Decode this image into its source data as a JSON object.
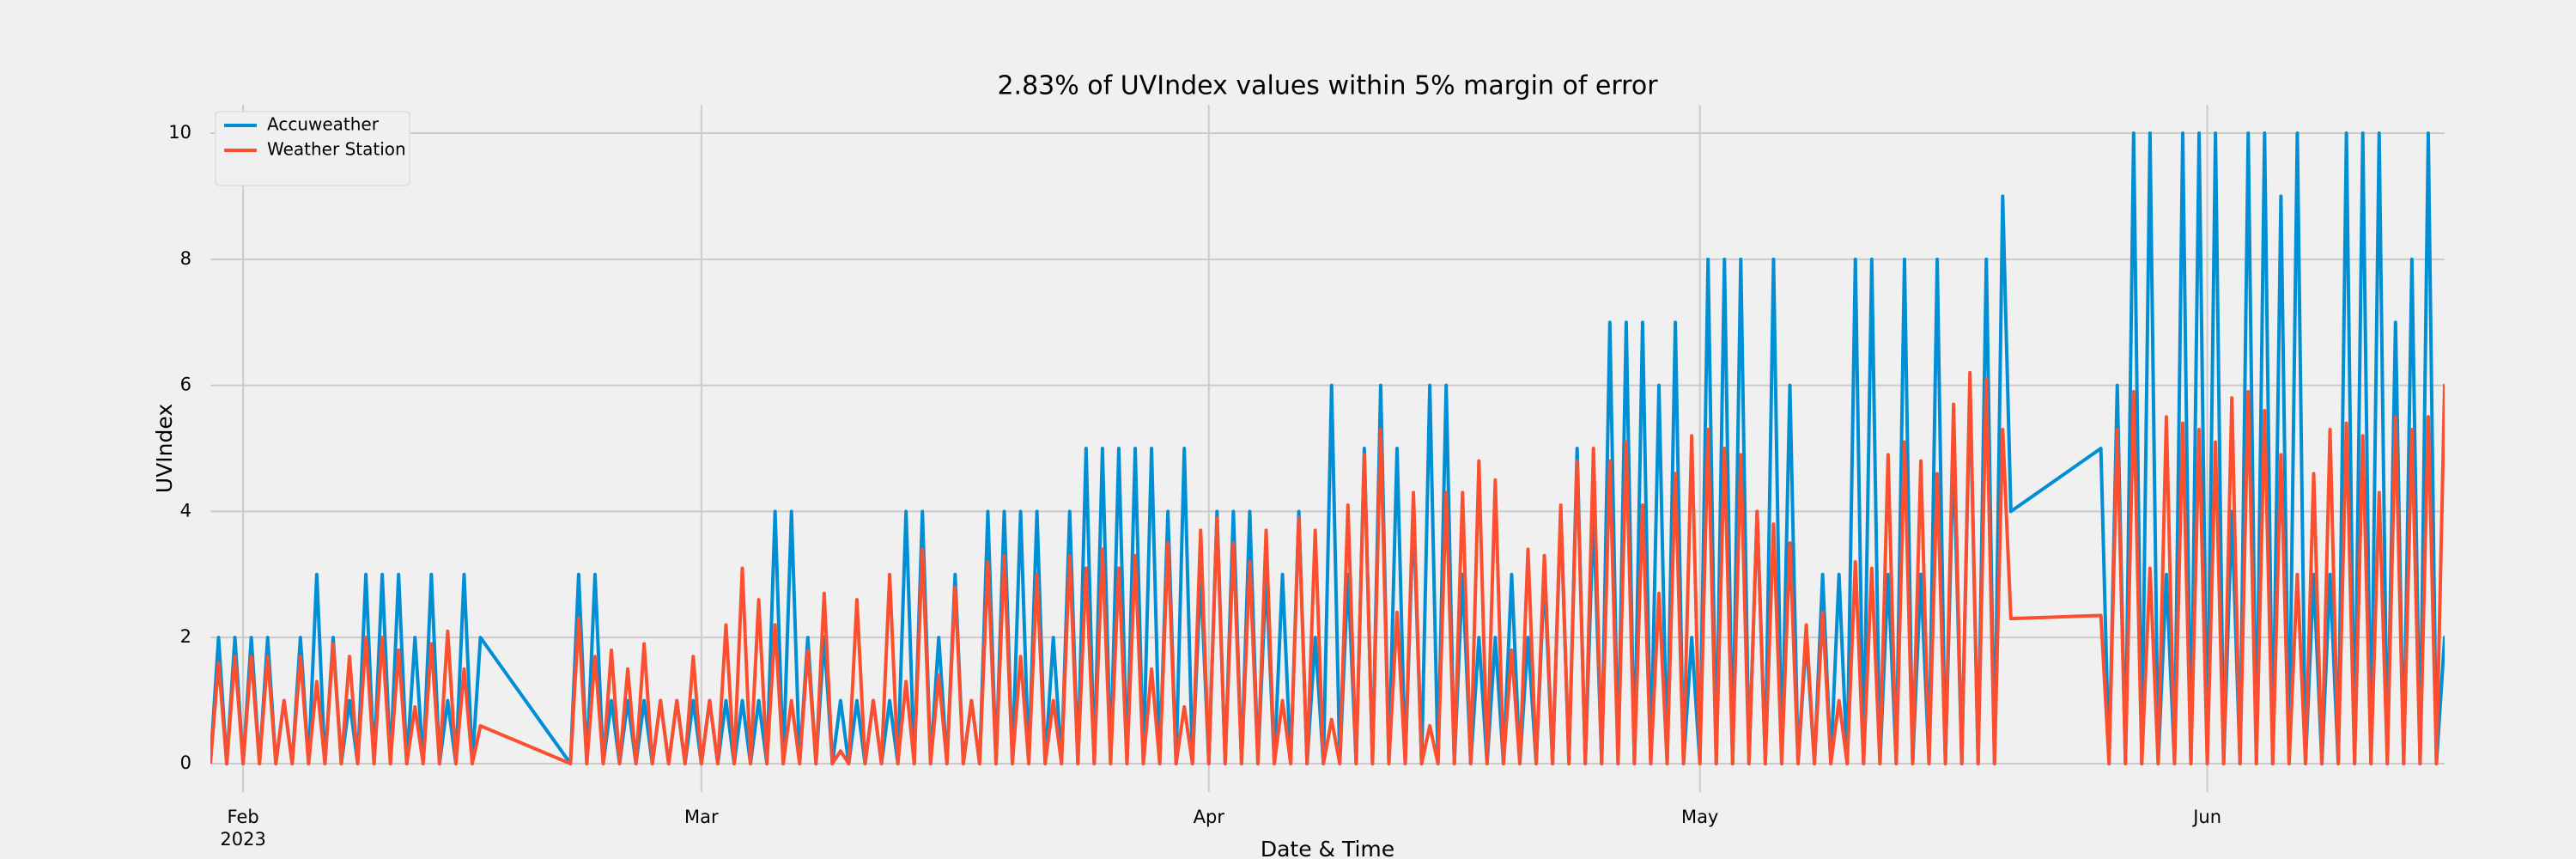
{
  "chart_data": {
    "type": "line",
    "title": "2.83% of UVIndex values within 5% margin of error",
    "xlabel": "Date & Time",
    "ylabel": "UVIndex",
    "xlim": [
      -2,
      134.5
    ],
    "ylim": [
      -0.45,
      10.45
    ],
    "xticks": [
      {
        "value": 0,
        "label": "Feb\n2023"
      },
      {
        "value": 28,
        "label": "Mar"
      },
      {
        "value": 59,
        "label": "Apr"
      },
      {
        "value": 89,
        "label": "May"
      },
      {
        "value": 120,
        "label": "Jun"
      }
    ],
    "yticks": [
      0,
      2,
      4,
      6,
      8,
      10
    ],
    "grid": true,
    "legend": "upper left",
    "x": [
      -2,
      -1.5,
      -1,
      -0.5,
      0,
      0.5,
      1,
      1.5,
      2,
      2.5,
      3,
      3.5,
      4,
      4.5,
      5,
      5.5,
      6,
      6.5,
      7,
      7.5,
      8,
      8.5,
      9,
      9.5,
      10,
      10.5,
      11,
      11.5,
      12,
      12.5,
      13,
      13.5,
      14,
      14.5,
      20,
      20.5,
      21,
      21.5,
      22,
      22.5,
      23,
      23.5,
      24,
      24.5,
      25,
      25.5,
      26,
      26.5,
      27,
      27.5,
      28,
      28.5,
      29,
      29.5,
      30,
      30.5,
      31,
      31.5,
      32,
      32.5,
      33,
      33.5,
      34,
      34.5,
      35,
      35.5,
      36,
      36.5,
      37,
      37.5,
      38,
      38.5,
      39,
      39.5,
      40,
      40.5,
      41,
      41.5,
      42,
      42.5,
      43,
      43.5,
      44,
      44.5,
      45,
      45.5,
      46,
      46.5,
      47,
      47.5,
      48,
      48.5,
      49,
      49.5,
      50,
      50.5,
      51,
      51.5,
      52,
      52.5,
      53,
      53.5,
      54,
      54.5,
      55,
      55.5,
      56,
      56.5,
      57,
      57.5,
      58,
      58.5,
      59,
      59.5,
      60,
      60.5,
      61,
      61.5,
      62,
      62.5,
      63,
      63.5,
      64,
      64.5,
      65,
      65.5,
      66,
      66.5,
      67,
      67.5,
      68,
      68.5,
      69,
      69.5,
      70,
      70.5,
      71,
      71.5,
      72,
      72.5,
      73,
      73.5,
      74,
      74.5,
      75,
      75.5,
      76,
      76.5,
      77,
      77.5,
      78,
      78.5,
      79,
      79.5,
      80,
      80.5,
      81,
      81.5,
      82,
      82.5,
      83,
      83.5,
      84,
      84.5,
      85,
      85.5,
      86,
      86.5,
      87,
      87.5,
      88,
      88.5,
      89,
      89.5,
      90,
      90.5,
      91,
      91.5,
      92,
      92.5,
      93,
      93.5,
      94,
      94.5,
      95,
      95.5,
      96,
      96.5,
      97,
      97.5,
      98,
      98.5,
      99,
      99.5,
      100,
      100.5,
      101,
      101.5,
      102,
      102.5,
      103,
      103.5,
      104,
      104.5,
      105,
      105.5,
      106,
      106.5,
      107,
      107.5,
      108,
      113.5,
      114,
      114.5,
      115,
      115.5,
      116,
      116.5,
      117,
      117.5,
      118,
      118.5,
      119,
      119.5,
      120,
      120.5,
      121,
      121.5,
      122,
      122.5,
      123,
      123.5,
      124,
      124.5,
      125,
      125.5,
      126,
      126.5,
      127,
      127.5,
      128,
      128.5,
      129,
      129.5,
      130,
      130.5,
      131,
      131.5,
      132,
      132.5,
      133,
      133.5,
      134,
      134.5,
      135
    ],
    "series": [
      {
        "name": "Accuweather",
        "color": "#008fd5",
        "values": [
          0,
          2,
          0,
          2,
          0,
          2,
          0,
          2,
          0,
          1,
          0,
          2,
          0,
          3,
          0,
          2,
          0,
          1,
          0,
          3,
          0,
          3,
          0,
          3,
          0,
          2,
          0,
          3,
          0,
          1,
          0,
          3,
          0,
          2,
          0,
          3,
          0,
          3,
          0,
          1,
          0,
          1,
          0,
          1,
          0,
          1,
          0,
          1,
          0,
          1,
          0,
          1,
          0,
          1,
          0,
          1,
          0,
          1,
          0,
          4,
          0,
          4,
          0,
          2,
          0,
          2,
          0,
          1,
          0,
          1,
          0,
          1,
          0,
          1,
          0,
          4,
          0,
          4,
          0,
          2,
          0,
          3,
          0,
          1,
          0,
          4,
          0,
          4,
          0,
          4,
          0,
          4,
          0,
          2,
          0,
          4,
          0,
          5,
          0,
          5,
          0,
          5,
          0,
          5,
          0,
          5,
          0,
          4,
          0,
          5,
          0,
          3,
          0,
          4,
          0,
          4,
          0,
          4,
          0,
          3,
          0,
          3,
          0,
          4,
          0,
          2,
          0,
          6,
          0,
          3,
          0,
          5,
          0,
          6,
          0,
          5,
          0,
          4,
          0,
          6,
          0,
          6,
          0,
          3,
          0,
          2,
          0,
          2,
          0,
          3,
          0,
          2,
          0,
          3,
          0,
          4,
          0,
          5,
          0,
          4,
          0,
          7,
          0,
          7,
          0,
          7,
          0,
          6,
          0,
          7,
          0,
          2,
          0,
          8,
          0,
          8,
          0,
          8,
          0,
          4,
          0,
          8,
          0,
          6,
          0,
          2,
          0,
          3,
          0,
          3,
          0,
          8,
          0,
          8,
          0,
          3,
          0,
          8,
          0,
          3,
          0,
          8,
          0,
          5,
          0,
          6,
          0,
          8,
          0,
          9,
          4,
          5,
          0,
          6,
          0,
          10,
          0,
          10,
          0,
          3,
          0,
          10,
          0,
          10,
          0,
          10,
          0,
          4,
          0,
          10,
          0,
          10,
          0,
          9,
          0,
          10,
          0,
          3,
          0,
          3,
          0,
          10,
          0,
          10,
          0,
          10,
          0,
          7,
          0,
          8,
          0,
          10,
          0,
          2,
          0
        ]
      },
      {
        "name": "Weather Station",
        "color": "#fc4f30",
        "values": [
          0,
          1.6,
          0,
          1.7,
          0,
          1.7,
          0,
          1.7,
          0,
          1.0,
          0,
          1.7,
          0,
          1.3,
          0,
          1.9,
          0,
          1.7,
          0,
          2.0,
          0,
          2.0,
          0,
          1.8,
          0,
          0.9,
          0,
          1.9,
          0,
          2.1,
          0,
          1.5,
          0,
          0.6,
          0,
          2.3,
          0,
          1.7,
          0,
          1.8,
          0,
          1.5,
          0,
          1.9,
          0,
          1.0,
          0,
          1.0,
          0,
          1.7,
          0,
          1.0,
          0,
          2.2,
          0,
          3.1,
          0,
          2.6,
          0,
          2.2,
          0,
          1.0,
          0,
          1.8,
          0,
          2.7,
          0,
          0.2,
          0,
          2.6,
          0,
          1.0,
          0,
          3.0,
          0,
          1.3,
          0,
          3.4,
          0,
          1.4,
          0,
          2.8,
          0,
          1.0,
          0,
          3.2,
          0,
          3.3,
          0,
          1.7,
          0,
          3.0,
          0,
          1.0,
          0,
          3.3,
          0,
          3.1,
          0,
          3.4,
          0,
          3.1,
          0,
          3.3,
          0,
          1.5,
          0,
          3.5,
          0,
          0.9,
          0,
          3.7,
          0,
          3.9,
          0,
          3.5,
          0,
          3.2,
          0,
          3.7,
          0,
          1.0,
          0,
          3.9,
          0,
          3.7,
          0,
          0.7,
          0,
          4.1,
          0,
          4.9,
          0,
          5.3,
          0,
          2.4,
          0,
          4.3,
          0,
          0.6,
          0,
          4.3,
          0,
          4.3,
          0,
          4.8,
          0,
          4.5,
          0,
          1.8,
          0,
          3.4,
          0,
          3.3,
          0,
          4.1,
          0,
          4.8,
          0,
          5.0,
          0,
          4.8,
          0,
          5.1,
          0,
          4.1,
          0,
          2.7,
          0,
          4.6,
          0,
          5.2,
          0,
          5.3,
          0,
          5.0,
          0,
          4.9,
          0,
          4.0,
          0,
          3.8,
          0,
          3.5,
          0,
          2.2,
          0,
          2.4,
          0,
          1.0,
          0,
          3.2,
          0,
          3.1,
          0,
          4.9,
          0,
          5.1,
          0,
          4.8,
          0,
          4.6,
          0,
          5.7,
          0,
          6.2,
          0,
          6.1,
          0,
          5.3,
          2.3,
          2.35,
          0,
          5.3,
          0,
          5.9,
          0,
          3.1,
          0,
          5.5,
          0,
          5.4,
          0,
          5.3,
          0,
          5.1,
          0,
          5.8,
          0,
          5.9,
          0,
          5.6,
          0,
          4.9,
          0,
          3.0,
          0,
          4.6,
          0,
          5.3,
          0,
          5.4,
          0,
          5.2,
          0,
          4.3,
          0,
          5.5,
          0,
          5.3,
          0,
          5.5,
          0,
          6.0,
          0
        ]
      }
    ]
  }
}
